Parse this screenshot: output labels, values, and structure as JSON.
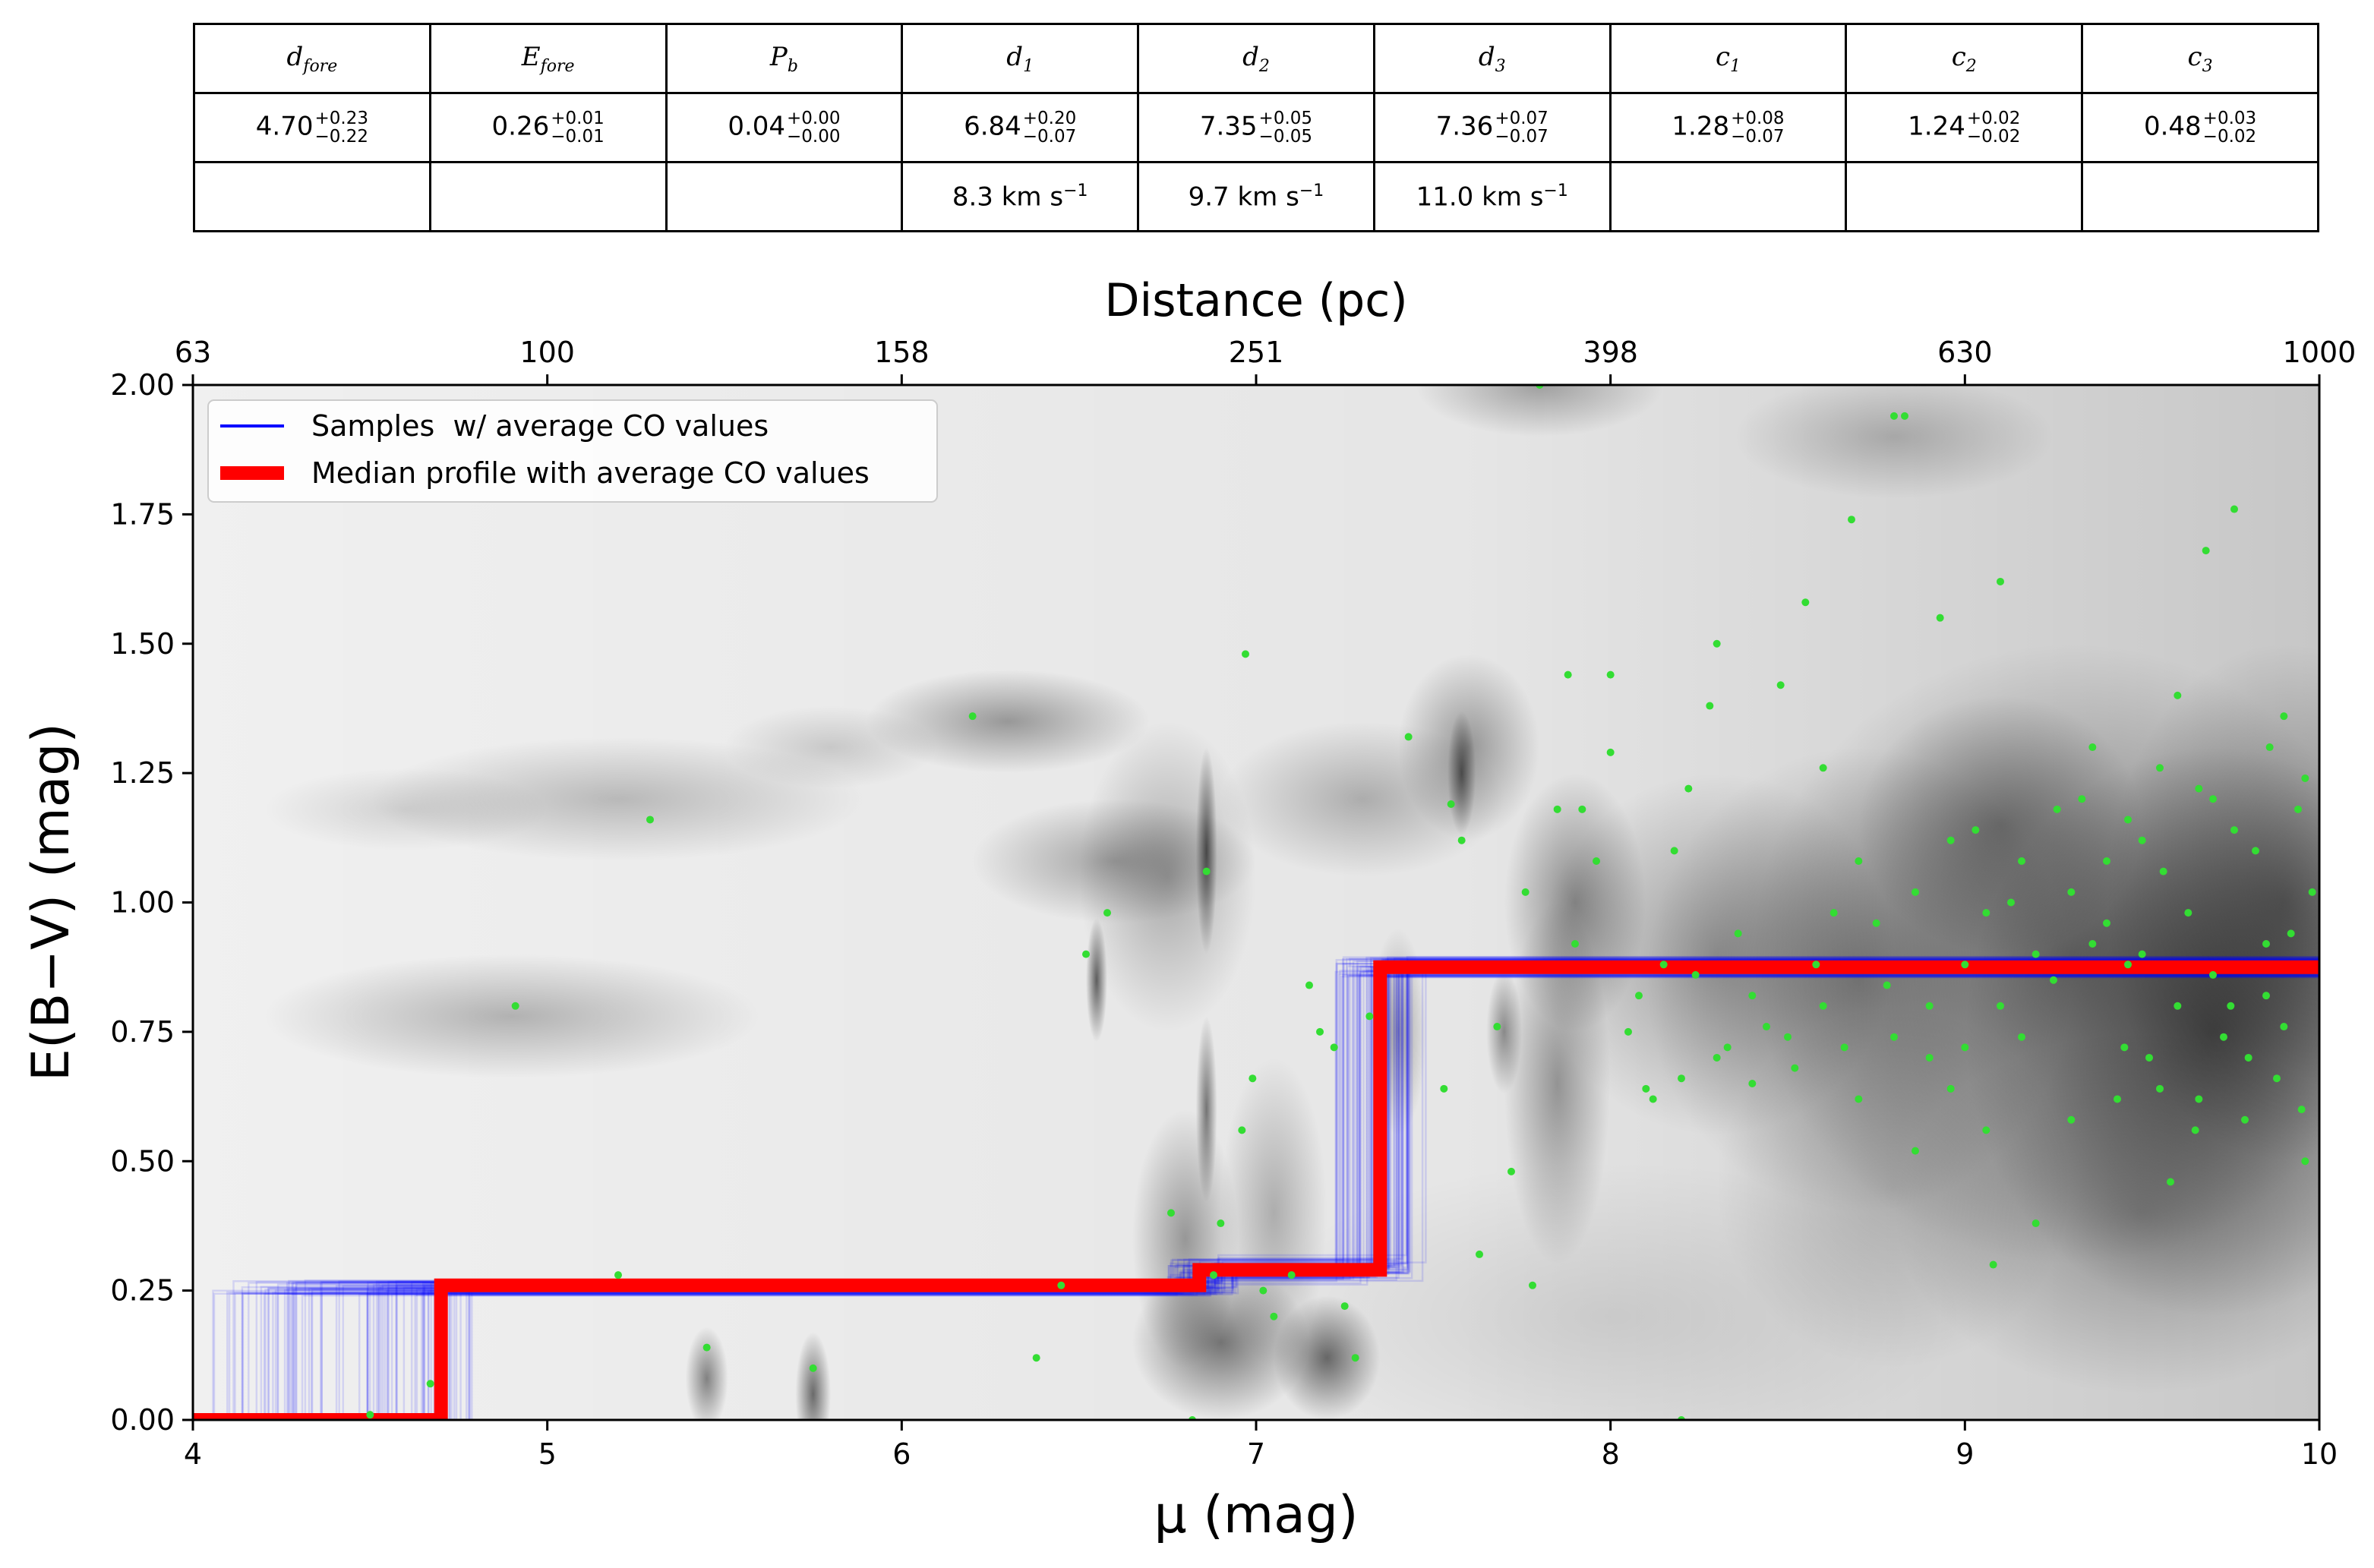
{
  "table": {
    "headers": [
      {
        "sym": "d",
        "sub": "fore"
      },
      {
        "sym": "E",
        "sub": "fore"
      },
      {
        "sym": "P",
        "sub": "b"
      },
      {
        "sym": "d",
        "sub": "1"
      },
      {
        "sym": "d",
        "sub": "2"
      },
      {
        "sym": "d",
        "sub": "3"
      },
      {
        "sym": "c",
        "sub": "1"
      },
      {
        "sym": "c",
        "sub": "2"
      },
      {
        "sym": "c",
        "sub": "3"
      }
    ],
    "values": [
      {
        "v": "4.70",
        "up": "+0.23",
        "lo": "−0.22"
      },
      {
        "v": "0.26",
        "up": "+0.01",
        "lo": "−0.01"
      },
      {
        "v": "0.04",
        "up": "+0.00",
        "lo": "−0.00"
      },
      {
        "v": "6.84",
        "up": "+0.20",
        "lo": "−0.07"
      },
      {
        "v": "7.35",
        "up": "+0.05",
        "lo": "−0.05"
      },
      {
        "v": "7.36",
        "up": "+0.07",
        "lo": "−0.07"
      },
      {
        "v": "1.28",
        "up": "+0.08",
        "lo": "−0.07"
      },
      {
        "v": "1.24",
        "up": "+0.02",
        "lo": "−0.02"
      },
      {
        "v": "0.48",
        "up": "+0.03",
        "lo": "−0.02"
      }
    ],
    "velocities": [
      "",
      "",
      "",
      "8.3 km s",
      "9.7 km s",
      "11.0 km s",
      "",
      "",
      ""
    ],
    "velocity_unit_exp": "−1"
  },
  "chart_data": {
    "type": "line",
    "xlabel": "μ (mag)",
    "ylabel": "E(B−V) (mag)",
    "top_xlabel": "Distance (pc)",
    "xlim": [
      4,
      10
    ],
    "ylim": [
      0,
      2
    ],
    "xticks": [
      4,
      5,
      6,
      7,
      8,
      9,
      10
    ],
    "yticks": [
      "0.00",
      "0.25",
      "0.50",
      "0.75",
      "1.00",
      "1.25",
      "1.50",
      "1.75",
      "2.00"
    ],
    "top_ticks": [
      {
        "mu": 4,
        "label": "63"
      },
      {
        "mu": 5,
        "label": "100"
      },
      {
        "mu": 6,
        "label": "158"
      },
      {
        "mu": 7,
        "label": "251"
      },
      {
        "mu": 8,
        "label": "398"
      },
      {
        "mu": 9,
        "label": "630"
      },
      {
        "mu": 10,
        "label": "1000"
      }
    ],
    "legend_position": "top-left",
    "series": [
      {
        "name": "Samples  w/ average CO values",
        "color": "#0000ff",
        "kind": "samples"
      },
      {
        "name": "Median profile with average CO values",
        "color": "#ff0000",
        "kind": "median",
        "x": [
          4.0,
          4.7,
          4.7,
          6.84,
          6.84,
          7.35,
          7.35,
          10.0
        ],
        "y": [
          0.0,
          0.0,
          0.26,
          0.26,
          0.29,
          0.29,
          0.875,
          0.875
        ]
      }
    ],
    "star_color": "#33dd33",
    "stars": [
      [
        4.5,
        0.01
      ],
      [
        4.67,
        0.07
      ],
      [
        4.91,
        0.8
      ],
      [
        5.2,
        0.28
      ],
      [
        5.29,
        1.16
      ],
      [
        5.45,
        0.14
      ],
      [
        5.75,
        0.1
      ],
      [
        6.2,
        1.36
      ],
      [
        6.38,
        0.12
      ],
      [
        6.45,
        0.26
      ],
      [
        6.58,
        0.98
      ],
      [
        6.52,
        0.9
      ],
      [
        6.76,
        0.4
      ],
      [
        6.82,
        0.0
      ],
      [
        6.86,
        1.06
      ],
      [
        6.88,
        0.28
      ],
      [
        6.9,
        0.38
      ],
      [
        6.96,
        0.56
      ],
      [
        6.97,
        1.48
      ],
      [
        6.99,
        0.66
      ],
      [
        7.02,
        0.25
      ],
      [
        7.05,
        0.2
      ],
      [
        7.1,
        0.28
      ],
      [
        7.15,
        0.84
      ],
      [
        7.18,
        0.75
      ],
      [
        7.22,
        0.72
      ],
      [
        7.25,
        0.22
      ],
      [
        7.28,
        0.12
      ],
      [
        7.32,
        0.78
      ],
      [
        7.43,
        1.32
      ],
      [
        7.53,
        0.64
      ],
      [
        7.55,
        1.19
      ],
      [
        7.58,
        1.12
      ],
      [
        7.63,
        0.32
      ],
      [
        7.68,
        0.76
      ],
      [
        7.72,
        0.48
      ],
      [
        7.76,
        1.02
      ],
      [
        7.78,
        0.26
      ],
      [
        7.8,
        2.0
      ],
      [
        7.85,
        1.18
      ],
      [
        7.88,
        1.44
      ],
      [
        7.9,
        0.92
      ],
      [
        7.92,
        1.18
      ],
      [
        7.96,
        1.08
      ],
      [
        8.0,
        1.44
      ],
      [
        8.0,
        1.29
      ],
      [
        8.05,
        0.75
      ],
      [
        8.08,
        0.82
      ],
      [
        8.12,
        0.62
      ],
      [
        8.15,
        0.88
      ],
      [
        8.18,
        1.1
      ],
      [
        8.2,
        0.0
      ],
      [
        8.22,
        1.22
      ],
      [
        8.24,
        0.86
      ],
      [
        8.28,
        1.38
      ],
      [
        8.3,
        1.5
      ],
      [
        8.33,
        0.72
      ],
      [
        8.36,
        0.94
      ],
      [
        8.4,
        0.65
      ],
      [
        8.44,
        0.76
      ],
      [
        8.48,
        1.42
      ],
      [
        8.52,
        0.68
      ],
      [
        8.55,
        1.58
      ],
      [
        8.58,
        0.88
      ],
      [
        8.6,
        1.26
      ],
      [
        8.63,
        0.98
      ],
      [
        8.66,
        0.72
      ],
      [
        8.68,
        1.74
      ],
      [
        8.7,
        1.08
      ],
      [
        8.75,
        0.96
      ],
      [
        8.78,
        0.84
      ],
      [
        8.8,
        1.94
      ],
      [
        8.83,
        1.94
      ],
      [
        8.86,
        0.52
      ],
      [
        8.9,
        0.7
      ],
      [
        8.93,
        1.55
      ],
      [
        8.96,
        0.64
      ],
      [
        9.0,
        0.88
      ],
      [
        9.03,
        1.14
      ],
      [
        9.06,
        0.56
      ],
      [
        9.08,
        0.3
      ],
      [
        9.1,
        1.62
      ],
      [
        9.13,
        1.0
      ],
      [
        9.16,
        0.74
      ],
      [
        9.2,
        0.38
      ],
      [
        9.25,
        0.85
      ],
      [
        9.3,
        0.58
      ],
      [
        9.33,
        1.2
      ],
      [
        9.36,
        0.92
      ],
      [
        9.4,
        1.08
      ],
      [
        9.43,
        0.62
      ],
      [
        9.46,
        0.88
      ],
      [
        9.5,
        1.12
      ],
      [
        9.52,
        0.7
      ],
      [
        9.55,
        1.26
      ],
      [
        9.58,
        0.46
      ],
      [
        9.6,
        1.4
      ],
      [
        9.63,
        0.98
      ],
      [
        9.66,
        0.62
      ],
      [
        9.68,
        1.68
      ],
      [
        9.7,
        1.2
      ],
      [
        9.73,
        0.74
      ],
      [
        9.76,
        1.76
      ],
      [
        9.79,
        0.58
      ],
      [
        9.82,
        1.1
      ],
      [
        9.85,
        0.82
      ],
      [
        9.88,
        0.66
      ],
      [
        9.9,
        1.36
      ],
      [
        9.92,
        0.94
      ],
      [
        9.94,
        1.18
      ],
      [
        9.96,
        0.5
      ],
      [
        9.98,
        1.02
      ],
      [
        9.5,
        0.9
      ],
      [
        9.6,
        0.8
      ],
      [
        9.7,
        0.86
      ],
      [
        9.8,
        0.7
      ],
      [
        9.9,
        0.76
      ],
      [
        9.45,
        0.72
      ],
      [
        9.55,
        0.64
      ],
      [
        9.65,
        0.56
      ],
      [
        9.75,
        0.8
      ],
      [
        9.85,
        0.92
      ],
      [
        9.95,
        0.6
      ],
      [
        9.4,
        0.96
      ],
      [
        9.3,
        1.02
      ],
      [
        9.2,
        0.9
      ],
      [
        9.1,
        0.8
      ],
      [
        9.0,
        0.72
      ],
      [
        8.9,
        0.8
      ],
      [
        8.8,
        0.74
      ],
      [
        8.7,
        0.62
      ],
      [
        8.6,
        0.8
      ],
      [
        8.5,
        0.74
      ],
      [
        8.4,
        0.82
      ],
      [
        8.3,
        0.7
      ],
      [
        8.2,
        0.66
      ],
      [
        8.1,
        0.64
      ],
      [
        9.96,
        1.24
      ],
      [
        9.86,
        1.3
      ],
      [
        9.76,
        1.14
      ],
      [
        9.66,
        1.22
      ],
      [
        9.56,
        1.06
      ],
      [
        9.46,
        1.16
      ],
      [
        9.36,
        1.3
      ],
      [
        9.26,
        1.18
      ],
      [
        9.16,
        1.08
      ],
      [
        9.06,
        0.98
      ],
      [
        8.96,
        1.12
      ],
      [
        8.86,
        1.02
      ]
    ]
  }
}
